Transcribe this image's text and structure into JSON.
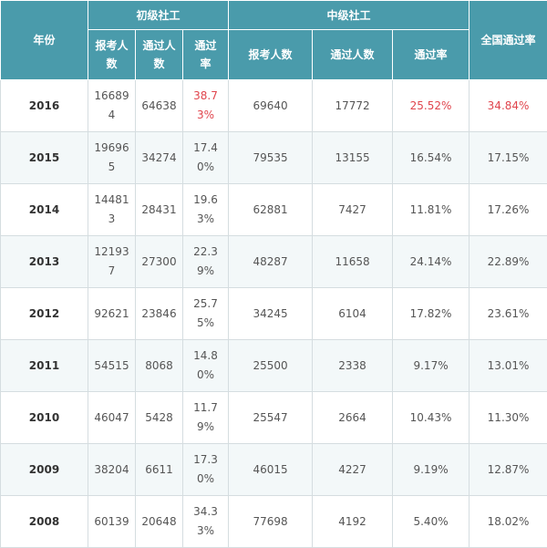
{
  "headers": {
    "year": "年份",
    "junior": "初级社工",
    "middle": "中级社工",
    "national_rate": "全国通过率",
    "junior_sub": [
      "报考人数",
      "通过人数",
      "通过率"
    ],
    "middle_sub": [
      "报考人数",
      "通过人数",
      "通过率"
    ]
  },
  "rows": [
    {
      "year": "2016",
      "jr_applicants": "166894",
      "jr_passed": "64638",
      "jr_rate": "38.73%",
      "mid_applicants": "69640",
      "mid_passed": "17772",
      "mid_rate": "25.52%",
      "national_rate": "34.84%"
    },
    {
      "year": "2015",
      "jr_applicants": "196965",
      "jr_passed": "34274",
      "jr_rate": "17.40%",
      "mid_applicants": "79535",
      "mid_passed": "13155",
      "mid_rate": "16.54%",
      "national_rate": "17.15%"
    },
    {
      "year": "2014",
      "jr_applicants": "144813",
      "jr_passed": "28431",
      "jr_rate": "19.63%",
      "mid_applicants": "62881",
      "mid_passed": "7427",
      "mid_rate": "11.81%",
      "national_rate": "17.26%"
    },
    {
      "year": "2013",
      "jr_applicants": "121937",
      "jr_passed": "27300",
      "jr_rate": "22.39%",
      "mid_applicants": "48287",
      "mid_passed": "11658",
      "mid_rate": "24.14%",
      "national_rate": "22.89%"
    },
    {
      "year": "2012",
      "jr_applicants": "92621",
      "jr_passed": "23846",
      "jr_rate": "25.75%",
      "mid_applicants": "34245",
      "mid_passed": "6104",
      "mid_rate": "17.82%",
      "national_rate": "23.61%"
    },
    {
      "year": "2011",
      "jr_applicants": "54515",
      "jr_passed": "8068",
      "jr_rate": "14.80%",
      "mid_applicants": "25500",
      "mid_passed": "2338",
      "mid_rate": "9.17%",
      "national_rate": "13.01%"
    },
    {
      "year": "2010",
      "jr_applicants": "46047",
      "jr_passed": "5428",
      "jr_rate": "11.79%",
      "mid_applicants": "25547",
      "mid_passed": "2664",
      "mid_rate": "10.43%",
      "national_rate": "11.30%"
    },
    {
      "year": "2009",
      "jr_applicants": "38204",
      "jr_passed": "6611",
      "jr_rate": "17.30%",
      "mid_applicants": "46015",
      "mid_passed": "4227",
      "mid_rate": "9.19%",
      "national_rate": "12.87%"
    },
    {
      "year": "2008",
      "jr_applicants": "60139",
      "jr_passed": "20648",
      "jr_rate": "34.33%",
      "mid_applicants": "77698",
      "mid_passed": "4192",
      "mid_rate": "5.40%",
      "national_rate": "18.02%"
    }
  ],
  "colors": {
    "header_bg": "#4a9bab",
    "highlight_red": "#e0454d",
    "stripe": "#f3f8f9"
  }
}
